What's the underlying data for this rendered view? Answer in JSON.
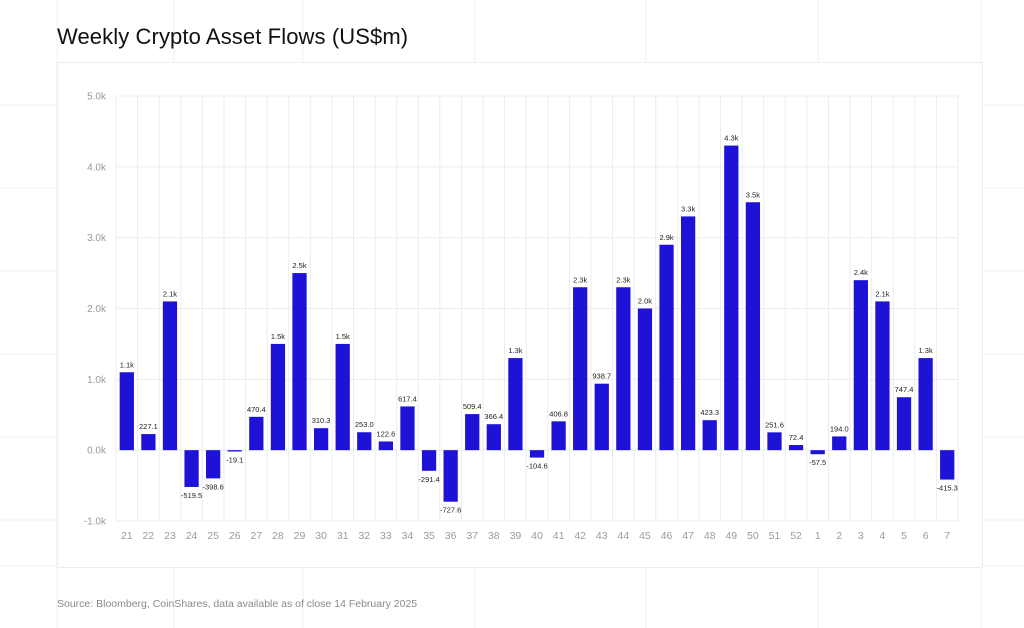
{
  "title": "Weekly Crypto Asset Flows (US$m)",
  "source": "Source: Bloomberg, CoinShares, data available as of close 14 February 2025",
  "colors": {
    "bar": "#1d12d6",
    "grid": "#ececec",
    "tick": "#9a9a9a",
    "label": "#222222"
  },
  "chart_data": {
    "type": "bar",
    "title": "Weekly Crypto Asset Flows (US$m)",
    "xlabel": "",
    "ylabel": "",
    "ylim": [
      -1000,
      5000
    ],
    "yticks": [
      -1000,
      0,
      1000,
      2000,
      3000,
      4000,
      5000
    ],
    "ytick_labels": [
      "-1.0k",
      "0.0k",
      "1.0k",
      "2.0k",
      "3.0k",
      "4.0k",
      "5.0k"
    ],
    "grid": true,
    "categories": [
      "21",
      "22",
      "23",
      "24",
      "25",
      "26",
      "27",
      "28",
      "29",
      "30",
      "31",
      "32",
      "33",
      "34",
      "35",
      "36",
      "37",
      "38",
      "39",
      "40",
      "41",
      "42",
      "43",
      "44",
      "45",
      "46",
      "47",
      "48",
      "49",
      "50",
      "51",
      "52",
      "1",
      "2",
      "3",
      "4",
      "5",
      "6",
      "7"
    ],
    "values": [
      1100,
      227.1,
      2100,
      -519.5,
      -398.6,
      -19.1,
      470.4,
      1500,
      2500,
      310.3,
      1500,
      253.0,
      122.6,
      617.4,
      -291.4,
      -727.6,
      509.4,
      366.4,
      1300,
      -104.6,
      406.8,
      2300,
      938.7,
      2300,
      2000,
      2900,
      3300,
      423.3,
      4300,
      3500,
      251.6,
      72.4,
      -57.5,
      194.0,
      2400,
      2100,
      747.4,
      1300,
      -415.3
    ],
    "data_labels": [
      "1.1k",
      "227.1",
      "2.1k",
      "-519.5",
      "-398.6",
      "-19.1",
      "470.4",
      "1.5k",
      "2.5k",
      "310.3",
      "1.5k",
      "253.0",
      "122.6",
      "617.4",
      "-291.4",
      "-727.6",
      "509.4",
      "366.4",
      "1.3k",
      "-104.6",
      "406.8",
      "2.3k",
      "938.7",
      "2.3k",
      "2.0k",
      "2.9k",
      "3.3k",
      "423.3",
      "4.3k",
      "3.5k",
      "251.6",
      "72.4",
      "-57.5",
      "194.0",
      "2.4k",
      "2.1k",
      "747.4",
      "1.3k",
      "-415.3"
    ]
  }
}
